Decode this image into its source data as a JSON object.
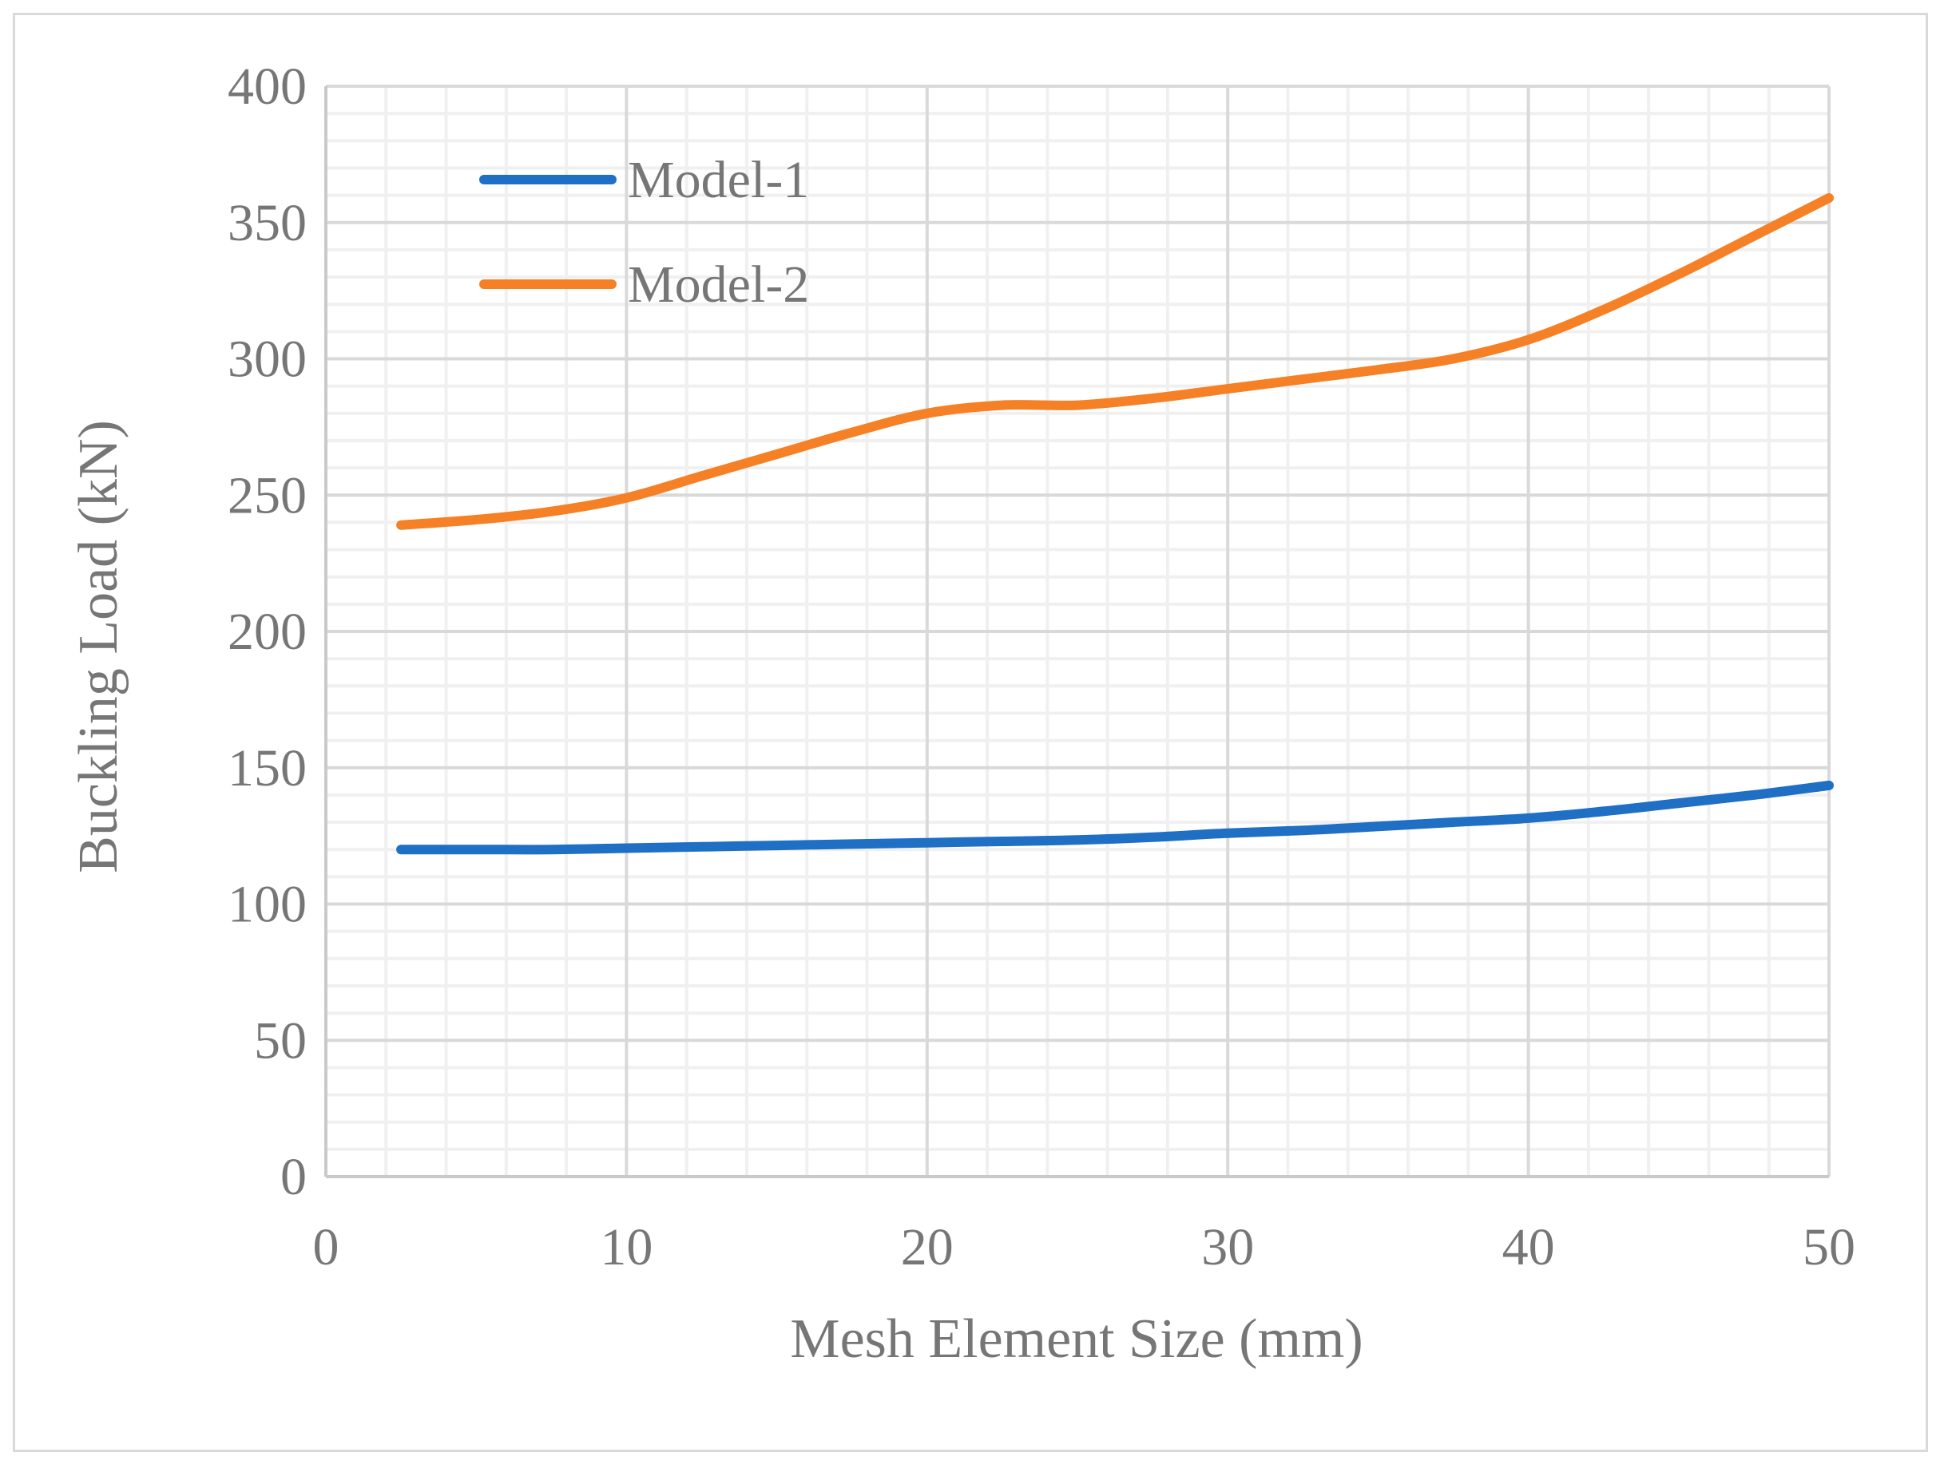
{
  "chart_data": {
    "type": "line",
    "title": "",
    "xlabel": "Mesh Element Size (mm)",
    "ylabel": "Buckling Load (kN)",
    "xlim": [
      0,
      50
    ],
    "ylim": [
      0,
      400
    ],
    "x_ticks": [
      0,
      10,
      20,
      30,
      40,
      50
    ],
    "y_ticks": [
      0,
      50,
      100,
      150,
      200,
      250,
      300,
      350,
      400
    ],
    "grid": true,
    "minor_grid": true,
    "legend_position": "top-left",
    "series": [
      {
        "name": "Model-1",
        "color": "#1f6fc5",
        "x": [
          2.5,
          5,
          7.5,
          10,
          12.5,
          15,
          17.5,
          20,
          22.5,
          25,
          27.5,
          30,
          32.5,
          35,
          37.5,
          40,
          42.5,
          45,
          47.5,
          50
        ],
        "y": [
          120,
          120,
          120,
          120.5,
          121,
          121.5,
          122,
          122.5,
          123,
          123.5,
          124.5,
          126,
          127,
          128.5,
          130,
          131.5,
          134,
          137,
          140,
          143.5
        ]
      },
      {
        "name": "Model-2",
        "color": "#f58025",
        "x": [
          2.5,
          5,
          7.5,
          10,
          12.5,
          15,
          17.5,
          20,
          22.5,
          25,
          27.5,
          30,
          32.5,
          35,
          37.5,
          40,
          42.5,
          45,
          47.5,
          50
        ],
        "y": [
          239,
          241,
          244,
          249,
          257,
          265,
          273,
          280,
          283,
          283,
          285.5,
          289,
          292.5,
          296,
          300,
          307,
          318,
          331,
          345,
          359
        ]
      }
    ]
  }
}
